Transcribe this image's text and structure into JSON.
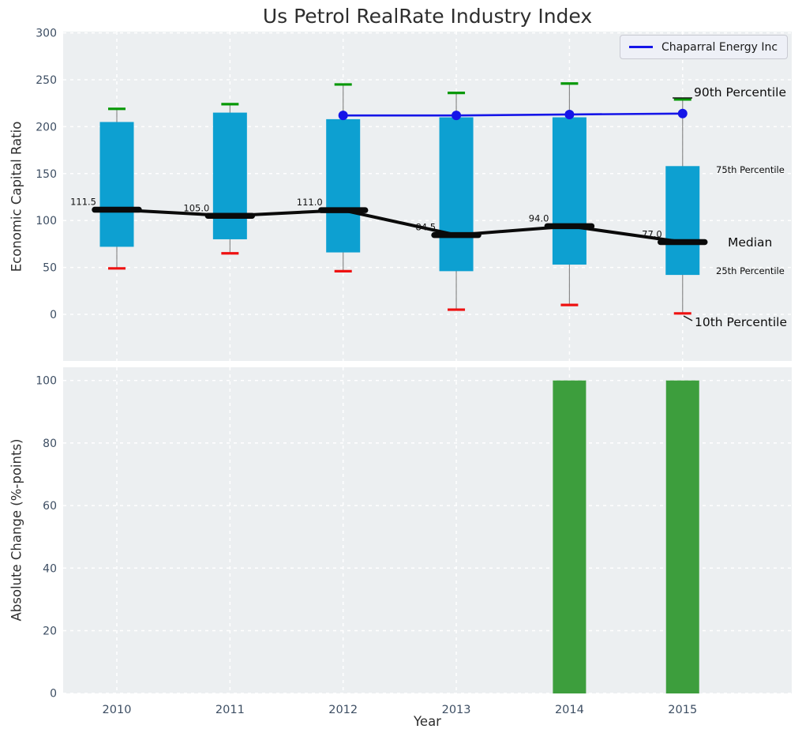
{
  "title": "Us Petrol RealRate Industry Index",
  "legend": {
    "label": "Chaparral Energy Inc"
  },
  "annotations": {
    "p90": "90th Percentile",
    "p75": "75th Percentile",
    "median": "Median",
    "p25": "25th Percentile",
    "p10": "10th Percentile"
  },
  "axes": {
    "top": {
      "ylabel": "Economic Capital Ratio",
      "yticks": [
        0,
        50,
        100,
        150,
        200,
        250,
        300
      ]
    },
    "bottom": {
      "ylabel": "Absolute Change (%-points)",
      "xlabel": "Year",
      "yticks": [
        0,
        20,
        40,
        60,
        80,
        100
      ]
    }
  },
  "colors": {
    "box": "#0da0d1",
    "bar": "#3d9e3d",
    "p90_cap": "#069806",
    "p10_cap": "#ee1111",
    "company_line": "#1515e8",
    "median": "#0a0a0a",
    "whisker": "#8a8a8a",
    "plot_bg": "#eceff1",
    "grid": "#ffffff",
    "tick": "#3d4e63",
    "annotation_cyan": "#18a0d6",
    "median_label": "#111111"
  },
  "chart_data": [
    {
      "type": "boxplot+line",
      "title": "Us Petrol RealRate Industry Index",
      "ylabel": "Economic Capital Ratio",
      "categories": [
        "2010",
        "2011",
        "2012",
        "2013",
        "2014",
        "2015"
      ],
      "ylim": [
        -50,
        301
      ],
      "grid": true,
      "legend_position": "upper right",
      "series": [
        {
          "name": "90th Percentile",
          "values": [
            219,
            224,
            245,
            236,
            246,
            229
          ]
        },
        {
          "name": "75th Percentile",
          "values": [
            205,
            215,
            208,
            210,
            210,
            158
          ]
        },
        {
          "name": "Median",
          "values": [
            111.5,
            105.0,
            111.0,
            84.5,
            94.0,
            77.0
          ]
        },
        {
          "name": "25th Percentile",
          "values": [
            72,
            80,
            66,
            46,
            53,
            42
          ]
        },
        {
          "name": "10th Percentile",
          "values": [
            49,
            65,
            46,
            5,
            10,
            1
          ]
        },
        {
          "name": "Chaparral Energy Inc",
          "values": [
            null,
            null,
            212,
            212,
            213,
            214
          ]
        }
      ],
      "median_labels": [
        "111.5",
        "105.0",
        "111.0",
        "84.5",
        "94.0",
        "77.0"
      ]
    },
    {
      "type": "bar",
      "ylabel": "Absolute Change (%-points)",
      "xlabel": "Year",
      "categories": [
        "2010",
        "2011",
        "2012",
        "2013",
        "2014",
        "2015"
      ],
      "values": [
        null,
        null,
        null,
        null,
        100,
        100
      ],
      "ylim": [
        0,
        104
      ],
      "grid": true
    }
  ]
}
